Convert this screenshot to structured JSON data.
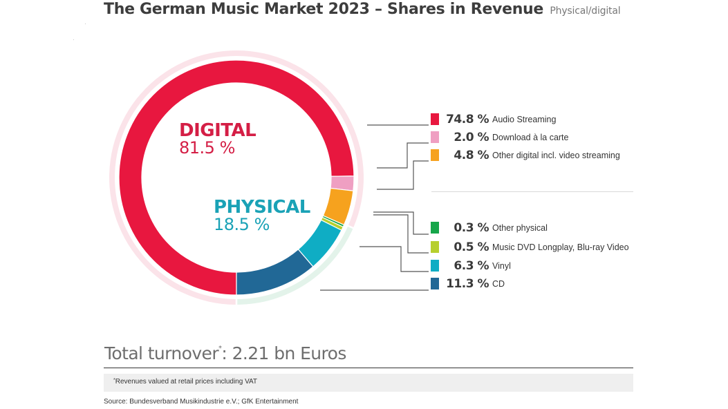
{
  "header": {
    "title": "The German Music Market 2023 – Shares in Revenue",
    "subtitle": "Physical/digital"
  },
  "chart_data": {
    "type": "pie",
    "variant": "donut",
    "title": "The German Music Market 2023 – Shares in Revenue",
    "subtitle": "Physical/digital",
    "unit": "%",
    "groups": [
      {
        "name": "DIGITAL",
        "value": 81.5,
        "value_label": "81.5 %",
        "color": "#d41e45",
        "ring_color": "#fbe3e9"
      },
      {
        "name": "PHYSICAL",
        "value": 18.5,
        "value_label": "18.5 %",
        "color": "#1aa2b6",
        "ring_color": "#e3f3ea"
      }
    ],
    "slices": [
      {
        "label": "Audio Streaming",
        "value": 74.8,
        "value_label": "74.8 %",
        "group": "DIGITAL",
        "color": "#e8173f"
      },
      {
        "label": "Download à la carte",
        "value": 2.0,
        "value_label": "2.0 %",
        "group": "DIGITAL",
        "color": "#ef9fc2"
      },
      {
        "label": "Other digital incl. video streaming",
        "value": 4.8,
        "value_label": "4.8 %",
        "group": "DIGITAL",
        "color": "#f6a21e"
      },
      {
        "label": "Other physical",
        "value": 0.3,
        "value_label": "0.3 %",
        "group": "PHYSICAL",
        "color": "#16a64a"
      },
      {
        "label": "Music DVD Longplay, Blu-ray Video",
        "value": 0.5,
        "value_label": "0.5 %",
        "group": "PHYSICAL",
        "color": "#b7cf2e"
      },
      {
        "label": "Vinyl",
        "value": 6.3,
        "value_label": "6.3 %",
        "group": "PHYSICAL",
        "color": "#0fadc4"
      },
      {
        "label": "CD",
        "value": 11.3,
        "value_label": "11.3 %",
        "group": "PHYSICAL",
        "color": "#216896"
      }
    ],
    "start_angle_deg": 180,
    "direction": "clockwise",
    "legend_position": "right"
  },
  "total": {
    "label": "Total turnover",
    "marker": "*",
    "value": ": 2.21 bn Euros"
  },
  "footnote": {
    "marker": "*",
    "text": "Revenues valued at retail prices including VAT"
  },
  "source": "Source: Bundesverband Musikindustrie e.V.; GfK Entertainment"
}
